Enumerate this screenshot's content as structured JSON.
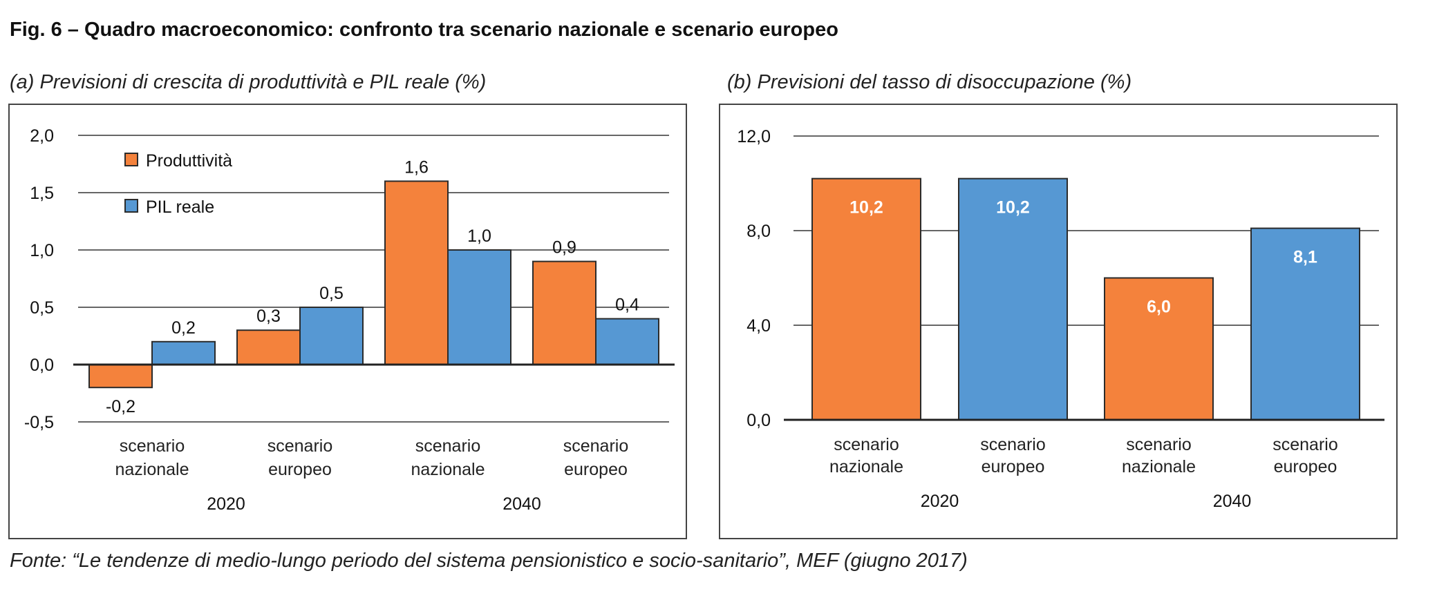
{
  "figure": {
    "title": "Fig. 6 – Quadro macroeconomico: confronto tra scenario nazionale e scenario europeo",
    "footer": "Fonte: “Le tendenze di medio-lungo periodo del sistema pensionistico e socio-sanitario”, MEF (giugno 2017)"
  },
  "colors": {
    "produttivita": "#F4823C",
    "pil": "#5698D3",
    "unemployment_nazionale": "#F4823C",
    "unemployment_europeo": "#5698D3"
  },
  "chart_data": [
    {
      "type": "bar",
      "title": "(a) Previsioni di crescita di produttività e PIL reale (%)",
      "xlabel": "",
      "ylabel": "",
      "ylim": [
        -0.5,
        2.0
      ],
      "yticks": [
        "2,0",
        "1,5",
        "1,0",
        "0,5",
        "0,0",
        "-0,5"
      ],
      "ytick_values": [
        2.0,
        1.5,
        1.0,
        0.5,
        0.0,
        -0.5
      ],
      "grid": true,
      "legend_position": "top-left",
      "categories": [
        [
          "scenario",
          "nazionale"
        ],
        [
          "scenario",
          "europeo"
        ],
        [
          "scenario",
          "nazionale"
        ],
        [
          "scenario",
          "europeo"
        ]
      ],
      "groups": [
        {
          "label": "2020",
          "categories": [
            0,
            1
          ]
        },
        {
          "label": "2040",
          "categories": [
            2,
            3
          ]
        }
      ],
      "series": [
        {
          "name": "Produttività",
          "values": [
            -0.2,
            0.3,
            1.6,
            0.9
          ],
          "labels": [
            "-0,2",
            "0,3",
            "1,6",
            "0,9"
          ]
        },
        {
          "name": "PIL reale",
          "values": [
            0.2,
            0.5,
            1.0,
            0.4
          ],
          "labels": [
            "0,2",
            "0,5",
            "1,0",
            "0,4"
          ]
        }
      ]
    },
    {
      "type": "bar",
      "title": "(b) Previsioni del tasso di disoccupazione (%)",
      "xlabel": "",
      "ylabel": "",
      "ylim": [
        0.0,
        12.0
      ],
      "yticks": [
        "12,0",
        "8,0",
        "4,0",
        "0,0"
      ],
      "ytick_values": [
        12.0,
        8.0,
        4.0,
        0.0
      ],
      "grid": true,
      "categories": [
        [
          "scenario",
          "nazionale"
        ],
        [
          "scenario",
          "europeo"
        ],
        [
          "scenario",
          "nazionale"
        ],
        [
          "scenario",
          "europeo"
        ]
      ],
      "groups": [
        {
          "label": "2020",
          "categories": [
            0,
            1
          ]
        },
        {
          "label": "2040",
          "categories": [
            2,
            3
          ]
        }
      ],
      "values": [
        10.2,
        10.2,
        6.0,
        8.1
      ],
      "labels": [
        "10,2",
        "10,2",
        "6,0",
        "8,1"
      ],
      "bar_colors": [
        "produttivita",
        "pil",
        "produttivita",
        "pil"
      ]
    }
  ]
}
